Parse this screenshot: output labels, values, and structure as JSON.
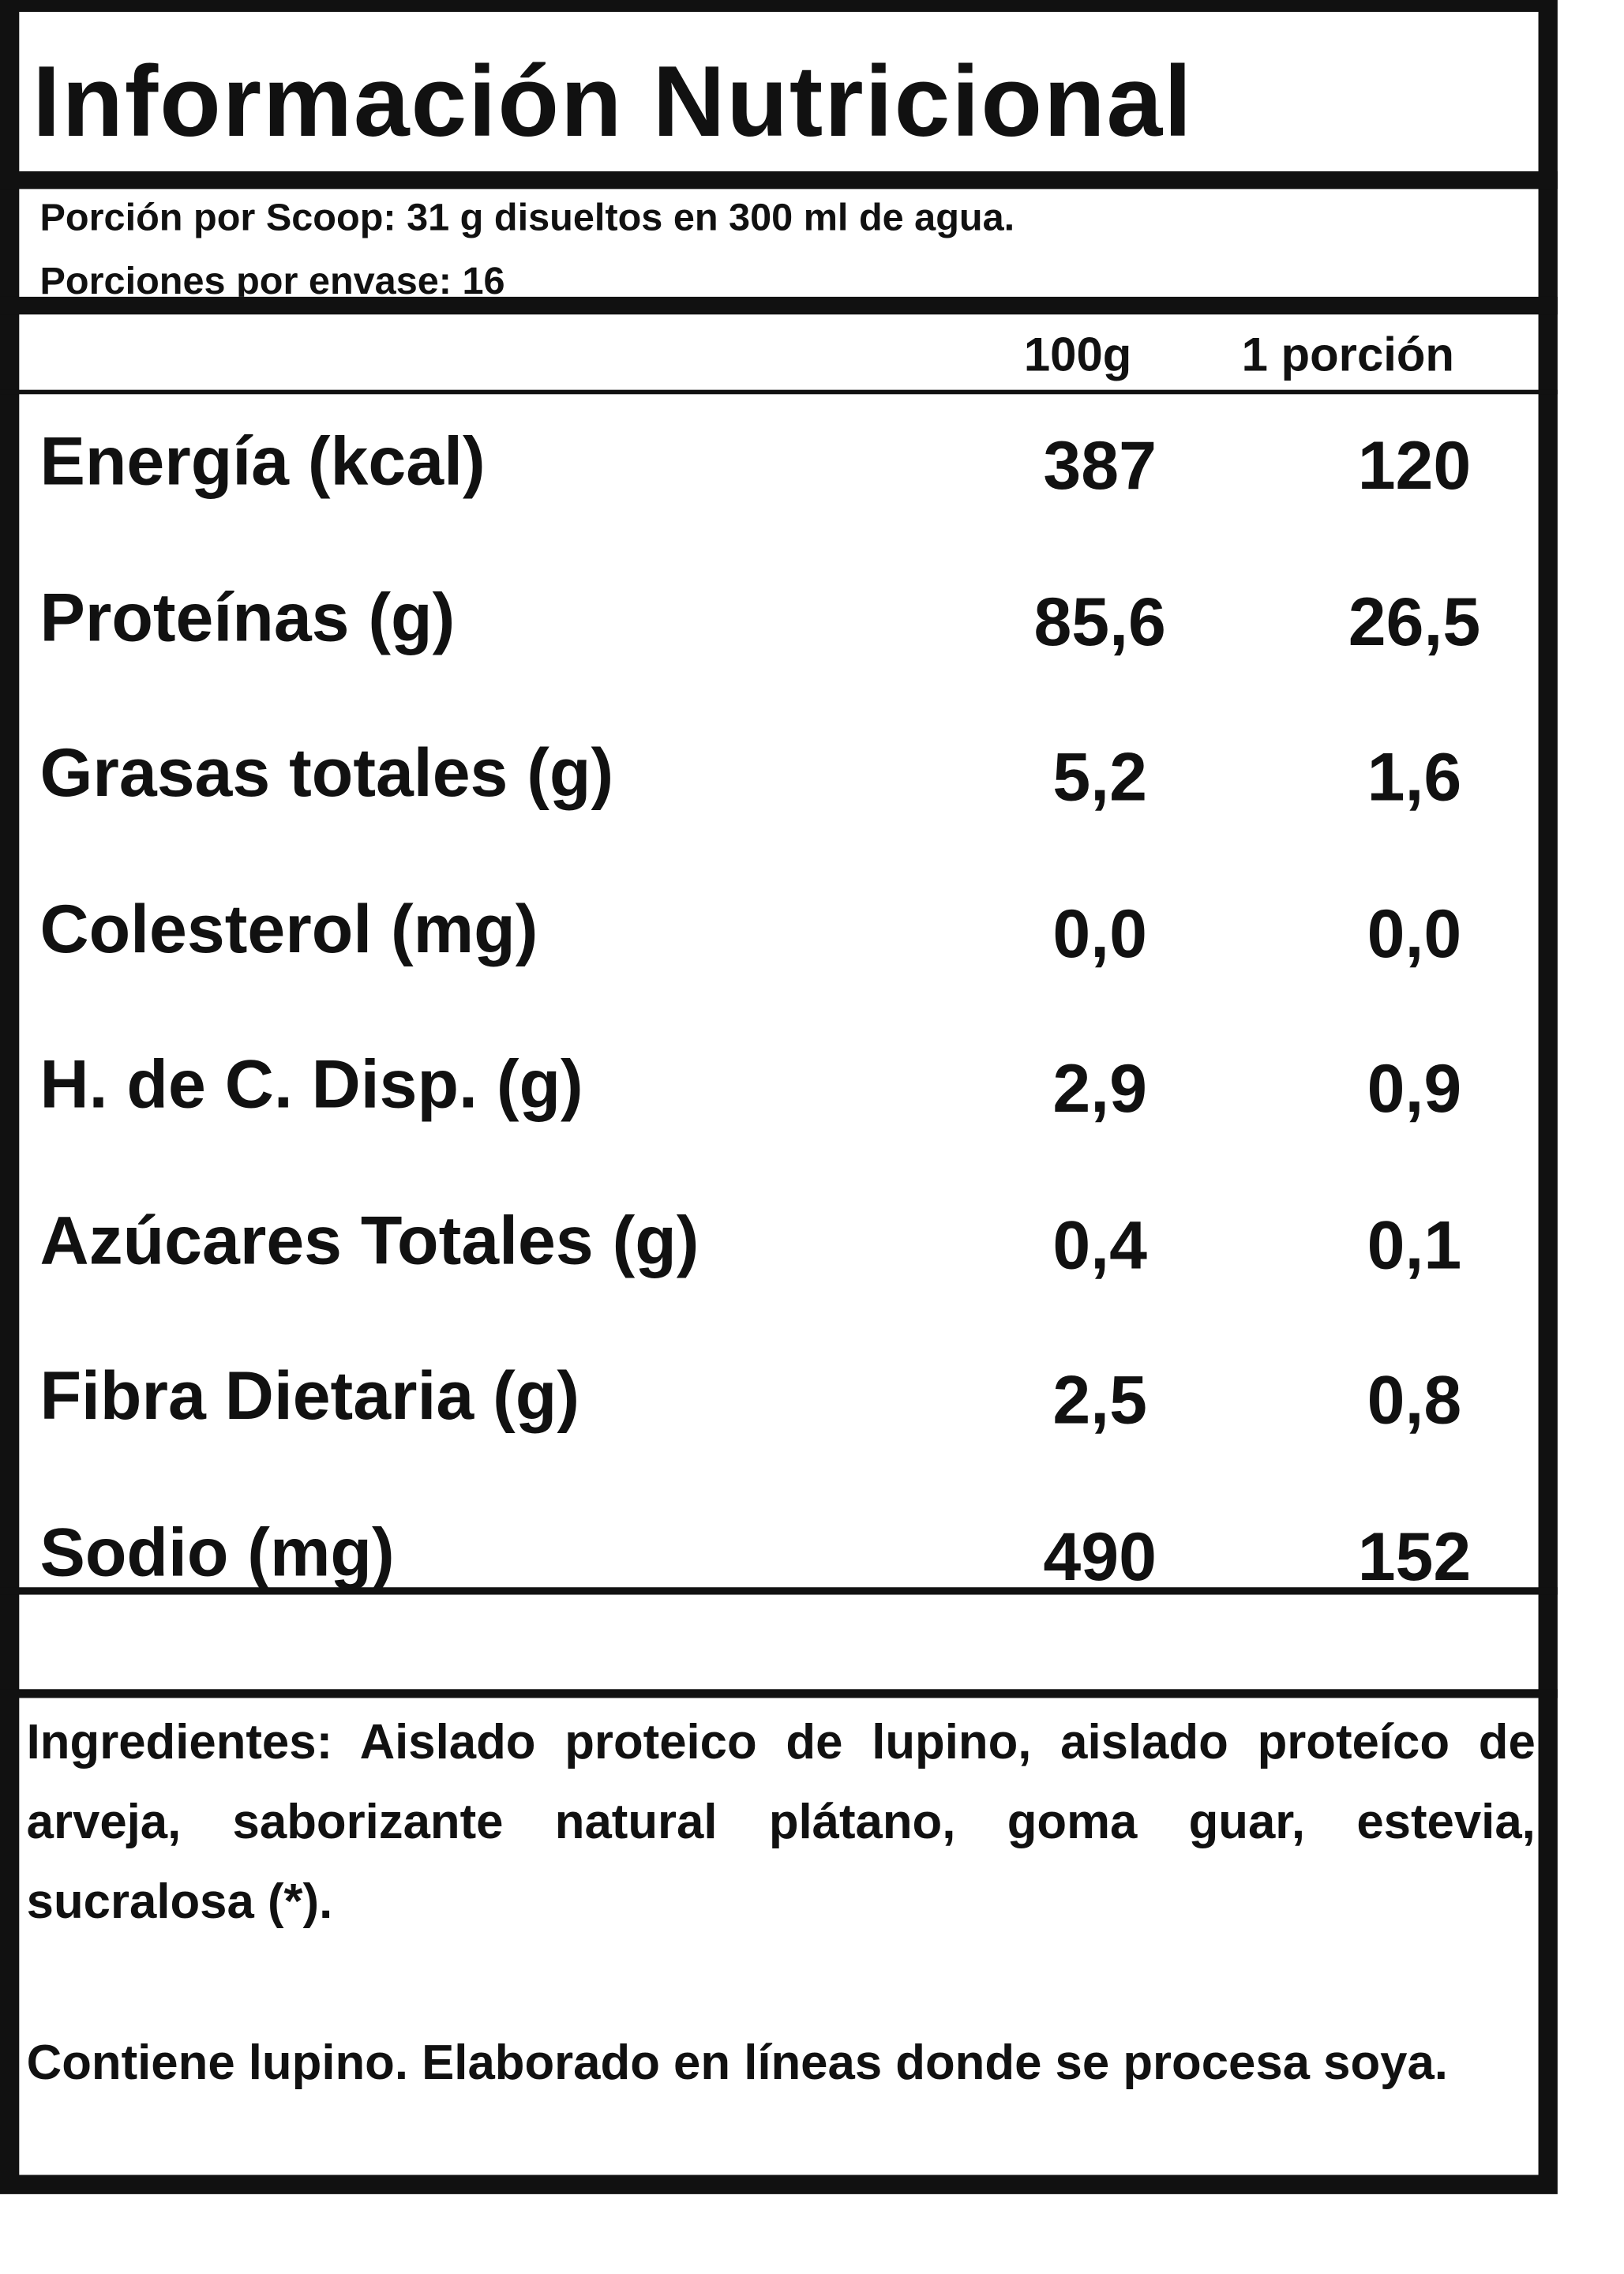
{
  "header": {
    "title": "Información Nutricional"
  },
  "serving": {
    "lines": [
      "Porción por Scoop: 31 g disueltos en 300 ml de agua.",
      "Porciones por envase: 16"
    ]
  },
  "table": {
    "columns": [
      "100g",
      "1 porción"
    ],
    "rows": [
      {
        "label": "Energía (kcal)",
        "values": [
          "387",
          "120"
        ]
      },
      {
        "label": "Proteínas (g)",
        "values": [
          "85,6",
          "26,5"
        ]
      },
      {
        "label": "Grasas totales (g)",
        "values": [
          "5,2",
          "1,6"
        ]
      },
      {
        "label": "Colesterol (mg)",
        "values": [
          "0,0",
          "0,0"
        ]
      },
      {
        "label": "H. de C. Disp. (g)",
        "values": [
          "2,9",
          "0,9"
        ]
      },
      {
        "label": "Azúcares Totales (g)",
        "values": [
          "0,4",
          "0,1"
        ]
      },
      {
        "label": "Fibra Dietaria (g)",
        "values": [
          "2,5",
          "0,8"
        ]
      },
      {
        "label": "Sodio (mg)",
        "values": [
          "490",
          "152"
        ]
      }
    ]
  },
  "ingredients": {
    "paragraphs": [
      "Ingredientes: Aislado proteico de lupino, aislado proteíco de arveja, saborizante natural plátano, goma guar, estevia, sucralosa (*).",
      "Contiene lupino. Elaborado en líneas donde se procesa soya."
    ]
  }
}
